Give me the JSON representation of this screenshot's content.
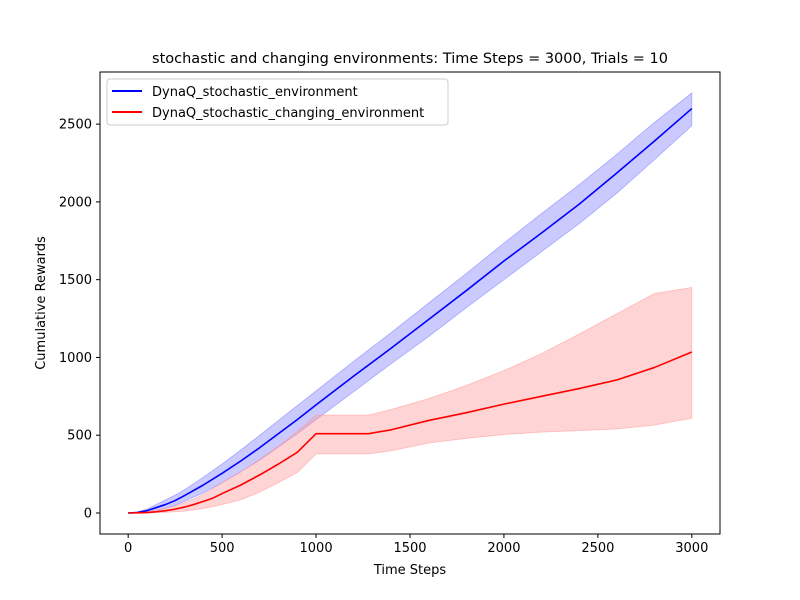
{
  "chart_data": {
    "type": "line",
    "title": "stochastic and changing environments: Time Steps = 3000, Trials = 10",
    "xlabel": "Time Steps",
    "ylabel": "Cumulative Rewards",
    "xlim": [
      -150,
      3150
    ],
    "ylim": [
      -135,
      2835
    ],
    "xticks": [
      0,
      500,
      1000,
      1500,
      2000,
      2500,
      3000
    ],
    "yticks": [
      0,
      500,
      1000,
      1500,
      2000,
      2500
    ],
    "grid": false,
    "legend_position": "upper left",
    "series": [
      {
        "name": "DynaQ_stochastic_environment",
        "color": "#0000ff",
        "band_color": "#8080ff",
        "x": [
          0,
          50,
          100,
          150,
          200,
          250,
          300,
          400,
          500,
          600,
          700,
          800,
          900,
          1000,
          1200,
          1400,
          1600,
          1800,
          2000,
          2200,
          2400,
          2600,
          2800,
          3000
        ],
        "y": [
          0,
          3,
          15,
          35,
          55,
          80,
          112,
          180,
          255,
          335,
          420,
          510,
          600,
          695,
          880,
          1060,
          1245,
          1430,
          1620,
          1800,
          1985,
          2185,
          2390,
          2600
        ],
        "lower": [
          0,
          0,
          5,
          15,
          30,
          50,
          75,
          130,
          195,
          265,
          340,
          425,
          510,
          600,
          780,
          960,
          1135,
          1320,
          1500,
          1680,
          1860,
          2055,
          2270,
          2490
        ],
        "upper": [
          0,
          8,
          25,
          55,
          85,
          115,
          150,
          230,
          315,
          405,
          500,
          595,
          690,
          785,
          975,
          1160,
          1350,
          1540,
          1735,
          1925,
          2110,
          2305,
          2510,
          2700
        ]
      },
      {
        "name": "DynaQ_stochastic_changing_environment",
        "color": "#ff0000",
        "band_color": "#ff9999",
        "x": [
          0,
          50,
          100,
          150,
          200,
          250,
          300,
          350,
          400,
          450,
          500,
          600,
          700,
          800,
          900,
          1000,
          1100,
          1200,
          1280,
          1400,
          1600,
          1800,
          2000,
          2200,
          2400,
          2600,
          2800,
          3000
        ],
        "y": [
          0,
          1,
          3,
          8,
          15,
          25,
          38,
          55,
          75,
          95,
          125,
          180,
          245,
          315,
          390,
          510,
          510,
          510,
          510,
          535,
          595,
          645,
          700,
          750,
          800,
          855,
          935,
          1035
        ],
        "lower": [
          0,
          0,
          0,
          2,
          5,
          8,
          12,
          20,
          30,
          40,
          55,
          85,
          135,
          195,
          260,
          380,
          380,
          380,
          380,
          400,
          450,
          480,
          505,
          520,
          530,
          540,
          565,
          610
        ],
        "upper": [
          0,
          3,
          8,
          18,
          30,
          45,
          65,
          90,
          120,
          155,
          195,
          265,
          345,
          430,
          525,
          630,
          630,
          630,
          630,
          665,
          735,
          820,
          915,
          1025,
          1150,
          1280,
          1410,
          1450
        ]
      }
    ]
  }
}
